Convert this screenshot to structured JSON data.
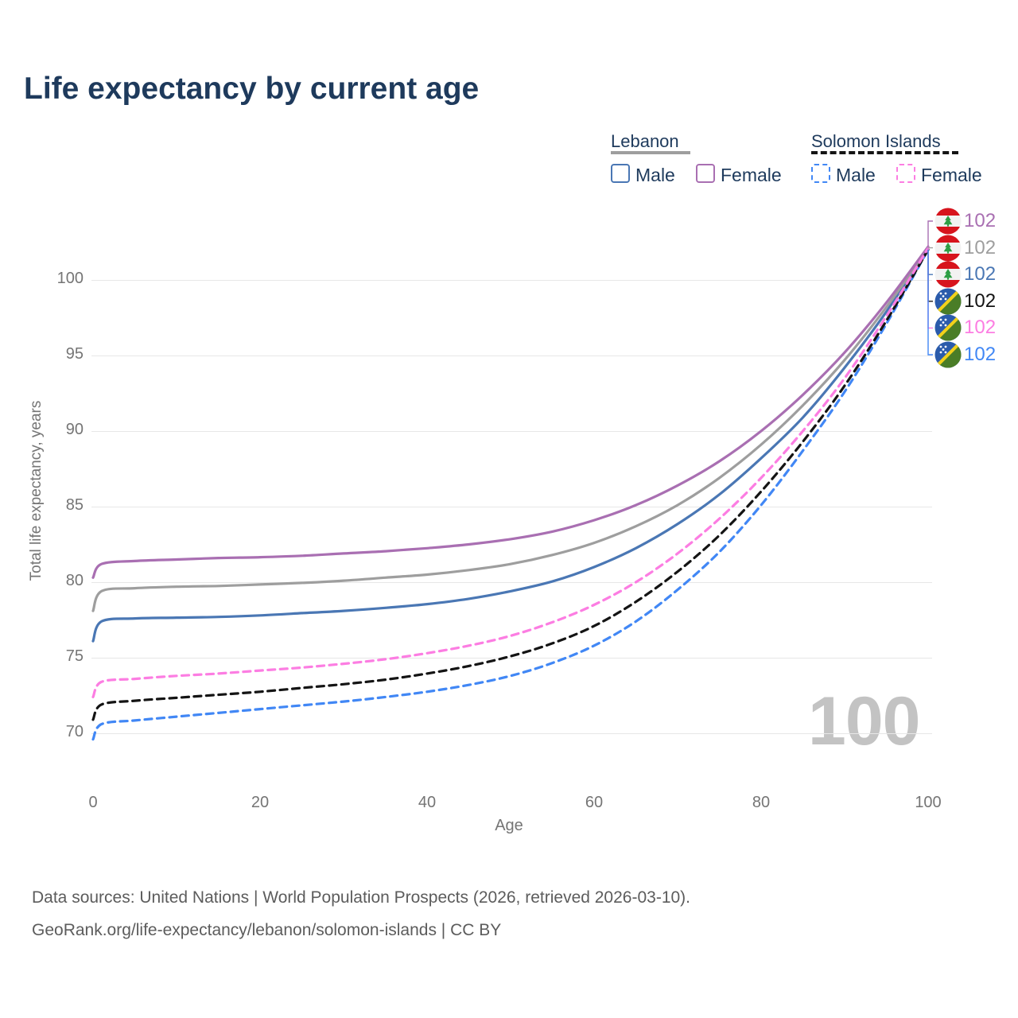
{
  "title": "Life expectancy by current age",
  "colors": {
    "title_text": "#1e3a5c",
    "legend_text": "#1e3a5c",
    "axis_text": "#757575",
    "gridline": "#e7e7e7",
    "watermark": "#c3c3c3",
    "footer_text": "#5c5c5c",
    "lebanon_male": "#4a77b4",
    "lebanon_female": "#a96fb2",
    "lebanon_total": "#9e9e9e",
    "solomon_male": "#4187f5",
    "solomon_female": "#fc7de2",
    "solomon_total": "#141414"
  },
  "legend": {
    "groups": [
      {
        "label": "Lebanon",
        "line_style": "solid",
        "underline_color": "#9e9e9e",
        "items": [
          {
            "label": "Male",
            "color": "#4a77b4"
          },
          {
            "label": "Female",
            "color": "#a96fb2"
          }
        ]
      },
      {
        "label": "Solomon Islands",
        "line_style": "dashed",
        "underline_color": "#141414",
        "items": [
          {
            "label": "Male",
            "color": "#4187f5"
          },
          {
            "label": "Female",
            "color": "#fc7de2"
          }
        ]
      }
    ]
  },
  "axes": {
    "x": {
      "label": "Age",
      "ticks": [
        "0",
        "20",
        "40",
        "60",
        "80",
        "100"
      ]
    },
    "y": {
      "label": "Total life expectancy, years",
      "ticks": [
        "70",
        "75",
        "80",
        "85",
        "90",
        "95",
        "100"
      ]
    }
  },
  "watermark": "100",
  "chart_data": {
    "type": "line",
    "title": "Life expectancy by current age",
    "xlabel": "Age",
    "ylabel": "Total life expectancy, years",
    "x_ticks": [
      0,
      20,
      40,
      60,
      80,
      100
    ],
    "y_ticks": [
      70,
      75,
      80,
      85,
      90,
      95,
      100
    ],
    "legend_position": "top-right",
    "grid": "horizontal",
    "ages": [
      0,
      1,
      5,
      10,
      15,
      20,
      25,
      30,
      35,
      40,
      45,
      50,
      55,
      60,
      65,
      70,
      75,
      80,
      85,
      90,
      95,
      100
    ],
    "series": [
      {
        "id": "lebanon_female",
        "name": "Lebanon Female",
        "country": "Lebanon",
        "sex": "Female",
        "color": "#a96fb2",
        "dash": false,
        "flag": "lebanon",
        "end_label": "102",
        "values": [
          80.3,
          81.2,
          81.4,
          81.5,
          81.6,
          81.65,
          81.75,
          81.9,
          82.05,
          82.25,
          82.5,
          82.85,
          83.35,
          84.1,
          85.1,
          86.4,
          88.0,
          90.0,
          92.4,
          95.2,
          98.5,
          102.2
        ]
      },
      {
        "id": "lebanon_total",
        "name": "Lebanon Both sexes",
        "country": "Lebanon",
        "sex": "Both",
        "color": "#9e9e9e",
        "dash": false,
        "flag": "lebanon",
        "end_label": "102",
        "values": [
          78.1,
          79.4,
          79.6,
          79.7,
          79.75,
          79.85,
          79.95,
          80.1,
          80.3,
          80.5,
          80.8,
          81.2,
          81.8,
          82.6,
          83.7,
          85.1,
          86.9,
          89.1,
          91.7,
          94.7,
          98.2,
          102.1
        ]
      },
      {
        "id": "lebanon_male",
        "name": "Lebanon Male",
        "country": "Lebanon",
        "sex": "Male",
        "color": "#4a77b4",
        "dash": false,
        "flag": "lebanon",
        "end_label": "102",
        "values": [
          76.1,
          77.4,
          77.6,
          77.65,
          77.7,
          77.8,
          77.95,
          78.1,
          78.3,
          78.55,
          78.9,
          79.4,
          80.05,
          81.0,
          82.25,
          83.85,
          85.8,
          88.2,
          90.9,
          94.2,
          97.9,
          102.1
        ]
      },
      {
        "id": "solomon_total",
        "name": "Solomon Islands Both sexes",
        "country": "Solomon Islands",
        "sex": "Both",
        "color": "#141414",
        "dash": true,
        "flag": "solomon",
        "end_label": "102",
        "values": [
          70.9,
          71.9,
          72.15,
          72.35,
          72.55,
          72.75,
          73.0,
          73.25,
          73.55,
          73.95,
          74.45,
          75.1,
          75.95,
          77.1,
          78.7,
          80.7,
          83.1,
          86.0,
          89.3,
          93.0,
          97.3,
          102.0
        ]
      },
      {
        "id": "solomon_female",
        "name": "Solomon Islands Female",
        "country": "Solomon Islands",
        "sex": "Female",
        "color": "#fc7de2",
        "dash": true,
        "flag": "solomon",
        "end_label": "102",
        "values": [
          72.4,
          73.4,
          73.6,
          73.8,
          73.95,
          74.15,
          74.35,
          74.6,
          74.9,
          75.3,
          75.8,
          76.45,
          77.35,
          78.5,
          80.0,
          81.9,
          84.2,
          86.9,
          90.0,
          93.5,
          97.6,
          102.1
        ]
      },
      {
        "id": "solomon_male",
        "name": "Solomon Islands Male",
        "country": "Solomon Islands",
        "sex": "Male",
        "color": "#4187f5",
        "dash": true,
        "flag": "solomon",
        "end_label": "102",
        "values": [
          69.6,
          70.6,
          70.85,
          71.1,
          71.35,
          71.6,
          71.85,
          72.1,
          72.4,
          72.75,
          73.2,
          73.8,
          74.65,
          75.8,
          77.4,
          79.5,
          82.0,
          85.1,
          88.7,
          92.6,
          97.1,
          102.0
        ]
      }
    ],
    "end_label_order": [
      "lebanon_female",
      "lebanon_total",
      "lebanon_male",
      "solomon_total",
      "solomon_female",
      "solomon_male"
    ]
  },
  "footer": {
    "line1": "Data sources: United Nations | World Population Prospects (2026, retrieved 2026-03-10).",
    "line2": "GeoRank.org/life-expectancy/lebanon/solomon-islands | CC BY"
  }
}
